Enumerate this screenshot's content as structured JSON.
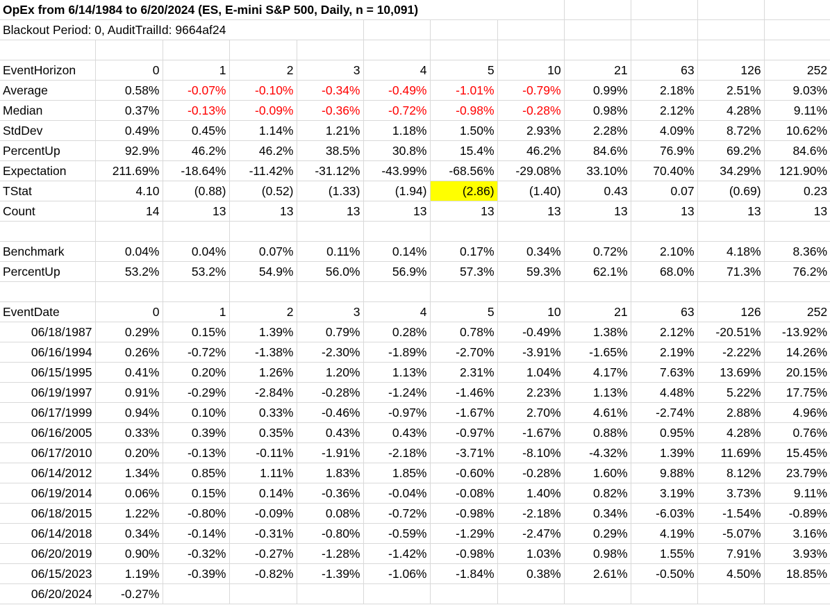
{
  "title": "OpEx from 6/14/1984 to 6/20/2024 (ES, E-mini S&P 500, Daily, n = 10,091)",
  "subtitle": "Blackout Period: 0, AuditTrailId: 9664af24",
  "summary": {
    "header": {
      "label": "EventHorizon",
      "horizons": [
        0,
        1,
        2,
        3,
        4,
        5,
        10,
        21,
        63,
        126,
        252
      ]
    },
    "rows": [
      {
        "label": "Average",
        "negative_color": "#ff0000",
        "cells": [
          "0.58%",
          "-0.07%",
          "-0.10%",
          "-0.34%",
          "-0.49%",
          "-1.01%",
          "-0.79%",
          "0.99%",
          "2.18%",
          "2.51%",
          "9.03%"
        ]
      },
      {
        "label": "Median",
        "negative_color": "#ff0000",
        "cells": [
          "0.37%",
          "-0.13%",
          "-0.09%",
          "-0.36%",
          "-0.72%",
          "-0.98%",
          "-0.28%",
          "0.98%",
          "2.12%",
          "4.28%",
          "9.11%"
        ]
      },
      {
        "label": "StdDev",
        "cells": [
          "0.49%",
          "0.45%",
          "1.14%",
          "1.21%",
          "1.18%",
          "1.50%",
          "2.93%",
          "2.28%",
          "4.09%",
          "8.72%",
          "10.62%"
        ]
      },
      {
        "label": "PercentUp",
        "cells": [
          "92.9%",
          "46.2%",
          "46.2%",
          "38.5%",
          "30.8%",
          "15.4%",
          "46.2%",
          "84.6%",
          "76.9%",
          "69.2%",
          "84.6%"
        ]
      },
      {
        "label": "Expectation",
        "cells": [
          "211.69%",
          "-18.64%",
          "-11.42%",
          "-31.12%",
          "-43.99%",
          "-68.56%",
          "-29.08%",
          "33.10%",
          "70.40%",
          "34.29%",
          "121.90%"
        ]
      },
      {
        "label": "TStat",
        "highlight": {
          "cell": 5,
          "color": "#ffff00"
        },
        "cells": [
          "4.10",
          "(0.88)",
          "(0.52)",
          "(1.33)",
          "(1.94)",
          "(2.86)",
          "(1.40)",
          "0.43",
          "0.07",
          "(0.69)",
          "0.23"
        ]
      },
      {
        "label": "Count",
        "cells": [
          14,
          13,
          13,
          13,
          13,
          13,
          13,
          13,
          13,
          13,
          13
        ]
      }
    ]
  },
  "benchmark": {
    "rows": [
      {
        "label": "Benchmark",
        "cells": [
          "0.04%",
          "0.04%",
          "0.07%",
          "0.11%",
          "0.14%",
          "0.17%",
          "0.34%",
          "0.72%",
          "2.10%",
          "4.18%",
          "8.36%"
        ]
      },
      {
        "label": "PercentUp",
        "cells": [
          "53.2%",
          "53.2%",
          "54.9%",
          "56.0%",
          "56.9%",
          "57.3%",
          "59.3%",
          "62.1%",
          "68.0%",
          "71.3%",
          "76.2%"
        ]
      }
    ]
  },
  "events": {
    "header": {
      "label": "EventDate",
      "horizons": [
        0,
        1,
        2,
        3,
        4,
        5,
        10,
        21,
        63,
        126,
        252
      ]
    },
    "rows": [
      {
        "label": "06/18/1987",
        "cells": [
          "0.29%",
          "0.15%",
          "1.39%",
          "0.79%",
          "0.28%",
          "0.78%",
          "-0.49%",
          "1.38%",
          "2.12%",
          "-20.51%",
          "-13.92%"
        ]
      },
      {
        "label": "06/16/1994",
        "cells": [
          "0.26%",
          "-0.72%",
          "-1.38%",
          "-2.30%",
          "-1.89%",
          "-2.70%",
          "-3.91%",
          "-1.65%",
          "2.19%",
          "-2.22%",
          "14.26%"
        ]
      },
      {
        "label": "06/15/1995",
        "cells": [
          "0.41%",
          "0.20%",
          "1.26%",
          "1.20%",
          "1.13%",
          "2.31%",
          "1.04%",
          "4.17%",
          "7.63%",
          "13.69%",
          "20.15%"
        ]
      },
      {
        "label": "06/19/1997",
        "cells": [
          "0.91%",
          "-0.29%",
          "-2.84%",
          "-0.28%",
          "-1.24%",
          "-1.46%",
          "2.23%",
          "1.13%",
          "4.48%",
          "5.22%",
          "17.75%"
        ]
      },
      {
        "label": "06/17/1999",
        "cells": [
          "0.94%",
          "0.10%",
          "0.33%",
          "-0.46%",
          "-0.97%",
          "-1.67%",
          "2.70%",
          "4.61%",
          "-2.74%",
          "2.88%",
          "4.96%"
        ]
      },
      {
        "label": "06/16/2005",
        "cells": [
          "0.33%",
          "0.39%",
          "0.35%",
          "0.43%",
          "0.43%",
          "-0.97%",
          "-1.67%",
          "0.88%",
          "0.95%",
          "4.28%",
          "0.76%"
        ]
      },
      {
        "label": "06/17/2010",
        "cells": [
          "0.20%",
          "-0.13%",
          "-0.11%",
          "-1.91%",
          "-2.18%",
          "-3.71%",
          "-8.10%",
          "-4.32%",
          "1.39%",
          "11.69%",
          "15.45%"
        ]
      },
      {
        "label": "06/14/2012",
        "cells": [
          "1.34%",
          "0.85%",
          "1.11%",
          "1.83%",
          "1.85%",
          "-0.60%",
          "-0.28%",
          "1.60%",
          "9.88%",
          "8.12%",
          "23.79%"
        ]
      },
      {
        "label": "06/19/2014",
        "cells": [
          "0.06%",
          "0.15%",
          "0.14%",
          "-0.36%",
          "-0.04%",
          "-0.08%",
          "1.40%",
          "0.82%",
          "3.19%",
          "3.73%",
          "9.11%"
        ]
      },
      {
        "label": "06/18/2015",
        "cells": [
          "1.22%",
          "-0.80%",
          "-0.09%",
          "0.08%",
          "-0.72%",
          "-0.98%",
          "-2.18%",
          "0.34%",
          "-6.03%",
          "-1.54%",
          "-0.89%"
        ]
      },
      {
        "label": "06/14/2018",
        "cells": [
          "0.34%",
          "-0.14%",
          "-0.31%",
          "-0.80%",
          "-0.59%",
          "-1.29%",
          "-2.47%",
          "0.29%",
          "4.19%",
          "-5.07%",
          "3.16%"
        ]
      },
      {
        "label": "06/20/2019",
        "cells": [
          "0.90%",
          "-0.32%",
          "-0.27%",
          "-1.28%",
          "-1.42%",
          "-0.98%",
          "1.03%",
          "0.98%",
          "1.55%",
          "7.91%",
          "3.93%"
        ]
      },
      {
        "label": "06/15/2023",
        "cells": [
          "1.19%",
          "-0.39%",
          "-0.82%",
          "-1.39%",
          "-1.06%",
          "-1.84%",
          "0.38%",
          "2.61%",
          "-0.50%",
          "4.50%",
          "18.85%"
        ]
      },
      {
        "label": "06/20/2024",
        "cells": [
          "-0.27%"
        ]
      }
    ]
  }
}
